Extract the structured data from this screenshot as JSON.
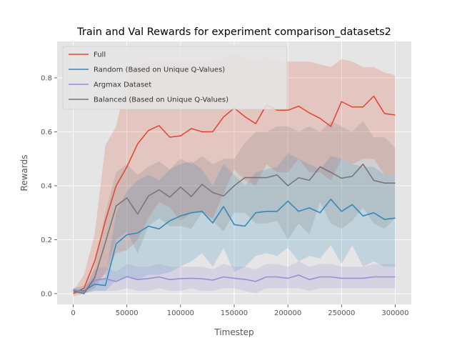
{
  "chart_data": {
    "type": "line",
    "title": "Train and Val Rewards for experiment comparison_datasets2",
    "xlabel": "Timestep",
    "ylabel": "Rewards",
    "xlim": [
      -15000,
      315000
    ],
    "ylim": [
      -0.04,
      0.935
    ],
    "xticks": [
      0,
      50000,
      100000,
      150000,
      200000,
      250000,
      300000
    ],
    "xtick_labels": [
      "0",
      "50000",
      "100000",
      "150000",
      "200000",
      "250000",
      "300000"
    ],
    "yticks": [
      0.0,
      0.2,
      0.4,
      0.6,
      0.8
    ],
    "ytick_labels": [
      "0.0",
      "0.2",
      "0.4",
      "0.6",
      "0.8"
    ],
    "grid": true,
    "style": "ggplot",
    "legend_position": "top-left",
    "x": [
      0,
      10000,
      20000,
      30000,
      40000,
      50000,
      60000,
      70000,
      80000,
      90000,
      100000,
      110000,
      120000,
      130000,
      140000,
      150000,
      160000,
      170000,
      180000,
      190000,
      200000,
      210000,
      220000,
      230000,
      240000,
      250000,
      260000,
      270000,
      280000,
      290000,
      300000
    ],
    "series": [
      {
        "name": "Full",
        "color": "#E24A33",
        "values": [
          0.0,
          0.02,
          0.12,
          0.27,
          0.4,
          0.47,
          0.555,
          0.605,
          0.623,
          0.58,
          0.585,
          0.612,
          0.6,
          0.6,
          0.655,
          0.688,
          0.656,
          0.63,
          0.7,
          0.68,
          0.68,
          0.695,
          0.67,
          0.65,
          0.62,
          0.712,
          0.692,
          0.692,
          0.732,
          0.668,
          0.662
        ],
        "upper": [
          0.01,
          0.07,
          0.22,
          0.55,
          0.62,
          0.8,
          0.85,
          0.86,
          0.86,
          0.86,
          0.86,
          0.86,
          0.86,
          0.86,
          0.87,
          0.89,
          0.87,
          0.86,
          0.88,
          0.86,
          0.86,
          0.86,
          0.86,
          0.85,
          0.84,
          0.87,
          0.86,
          0.84,
          0.84,
          0.82,
          0.81
        ],
        "lower": [
          -0.01,
          0.0,
          0.04,
          0.07,
          0.15,
          0.16,
          0.2,
          0.28,
          0.34,
          0.32,
          0.27,
          0.3,
          0.3,
          0.28,
          0.37,
          0.46,
          0.42,
          0.4,
          0.48,
          0.45,
          0.45,
          0.5,
          0.45,
          0.45,
          0.42,
          0.5,
          0.48,
          0.5,
          0.5,
          0.44,
          0.44
        ]
      },
      {
        "name": "Random (Based on Unique Q-Values)",
        "color": "#348ABD",
        "values": [
          0.01,
          0.01,
          0.035,
          0.03,
          0.185,
          0.218,
          0.225,
          0.25,
          0.24,
          0.27,
          0.288,
          0.3,
          0.305,
          0.262,
          0.323,
          0.256,
          0.25,
          0.3,
          0.305,
          0.305,
          0.343,
          0.305,
          0.318,
          0.3,
          0.35,
          0.305,
          0.33,
          0.288,
          0.3,
          0.275,
          0.28
        ],
        "upper": [
          0.02,
          0.03,
          0.05,
          0.06,
          0.3,
          0.38,
          0.42,
          0.44,
          0.42,
          0.46,
          0.48,
          0.49,
          0.46,
          0.4,
          0.48,
          0.44,
          0.4,
          0.45,
          0.46,
          0.47,
          0.52,
          0.5,
          0.48,
          0.46,
          0.51,
          0.5,
          0.48,
          0.47,
          0.47,
          0.44,
          0.44
        ],
        "lower": [
          0.0,
          0.0,
          0.01,
          0.01,
          0.05,
          0.06,
          0.05,
          0.07,
          0.07,
          0.08,
          0.1,
          0.12,
          0.15,
          0.1,
          0.17,
          0.08,
          0.1,
          0.14,
          0.15,
          0.14,
          0.17,
          0.12,
          0.14,
          0.13,
          0.18,
          0.11,
          0.18,
          0.1,
          0.12,
          0.1,
          0.1
        ]
      },
      {
        "name": "Argmax Dataset",
        "color": "#988ED5",
        "values": [
          0.015,
          0.005,
          0.05,
          0.055,
          0.045,
          0.063,
          0.052,
          0.056,
          0.062,
          0.052,
          0.056,
          0.057,
          0.055,
          0.05,
          0.062,
          0.057,
          0.053,
          0.045,
          0.062,
          0.062,
          0.057,
          0.069,
          0.052,
          0.062,
          0.062,
          0.057,
          0.057,
          0.057,
          0.062,
          0.062,
          0.062
        ],
        "upper": [
          0.02,
          0.01,
          0.09,
          0.1,
          0.08,
          0.11,
          0.1,
          0.1,
          0.11,
          0.1,
          0.1,
          0.1,
          0.1,
          0.09,
          0.11,
          0.1,
          0.1,
          0.09,
          0.11,
          0.11,
          0.1,
          0.12,
          0.1,
          0.11,
          0.11,
          0.1,
          0.1,
          0.1,
          0.11,
          0.11,
          0.11
        ],
        "lower": [
          0.01,
          0.0,
          0.01,
          0.01,
          0.01,
          0.02,
          0.01,
          0.01,
          0.02,
          0.01,
          0.01,
          0.02,
          0.01,
          0.01,
          0.02,
          0.02,
          0.01,
          0.0,
          0.02,
          0.02,
          0.02,
          0.02,
          0.01,
          0.02,
          0.02,
          0.02,
          0.02,
          0.02,
          0.02,
          0.02,
          0.02
        ]
      },
      {
        "name": "Balanced (Based on Unique Q-Values)",
        "color": "#777777",
        "values": [
          0.01,
          0.0,
          0.06,
          0.19,
          0.325,
          0.355,
          0.295,
          0.362,
          0.385,
          0.358,
          0.395,
          0.36,
          0.405,
          0.375,
          0.362,
          0.4,
          0.43,
          0.43,
          0.43,
          0.44,
          0.4,
          0.43,
          0.42,
          0.47,
          0.45,
          0.428,
          0.435,
          0.48,
          0.42,
          0.41,
          0.41
        ],
        "upper": [
          0.02,
          0.01,
          0.1,
          0.3,
          0.45,
          0.48,
          0.44,
          0.47,
          0.49,
          0.46,
          0.5,
          0.48,
          0.51,
          0.48,
          0.5,
          0.5,
          0.56,
          0.6,
          0.6,
          0.62,
          0.62,
          0.6,
          0.62,
          0.6,
          0.64,
          0.62,
          0.6,
          0.64,
          0.58,
          0.58,
          0.54
        ],
        "lower": [
          0.0,
          0.0,
          0.02,
          0.08,
          0.2,
          0.23,
          0.15,
          0.25,
          0.28,
          0.25,
          0.25,
          0.24,
          0.3,
          0.27,
          0.23,
          0.3,
          0.3,
          0.26,
          0.26,
          0.27,
          0.2,
          0.26,
          0.22,
          0.34,
          0.26,
          0.24,
          0.27,
          0.32,
          0.26,
          0.24,
          0.28
        ]
      }
    ]
  }
}
